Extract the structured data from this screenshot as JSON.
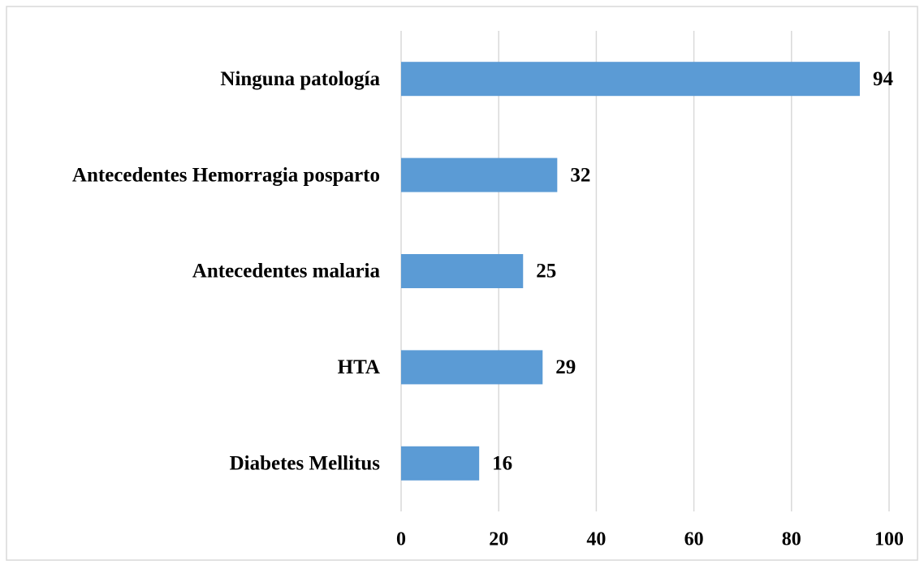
{
  "chart_data": {
    "type": "bar",
    "orientation": "horizontal",
    "categories": [
      "Ninguna patología",
      "Antecedentes Hemorragia posparto",
      "Antecedentes malaria",
      "HTA",
      "Diabetes Mellitus"
    ],
    "values": [
      94,
      32,
      25,
      29,
      16
    ],
    "color": "#5b9bd5",
    "xlim": [
      0,
      100
    ],
    "xticks": [
      0,
      20,
      40,
      60,
      80,
      100
    ],
    "grid": true
  }
}
